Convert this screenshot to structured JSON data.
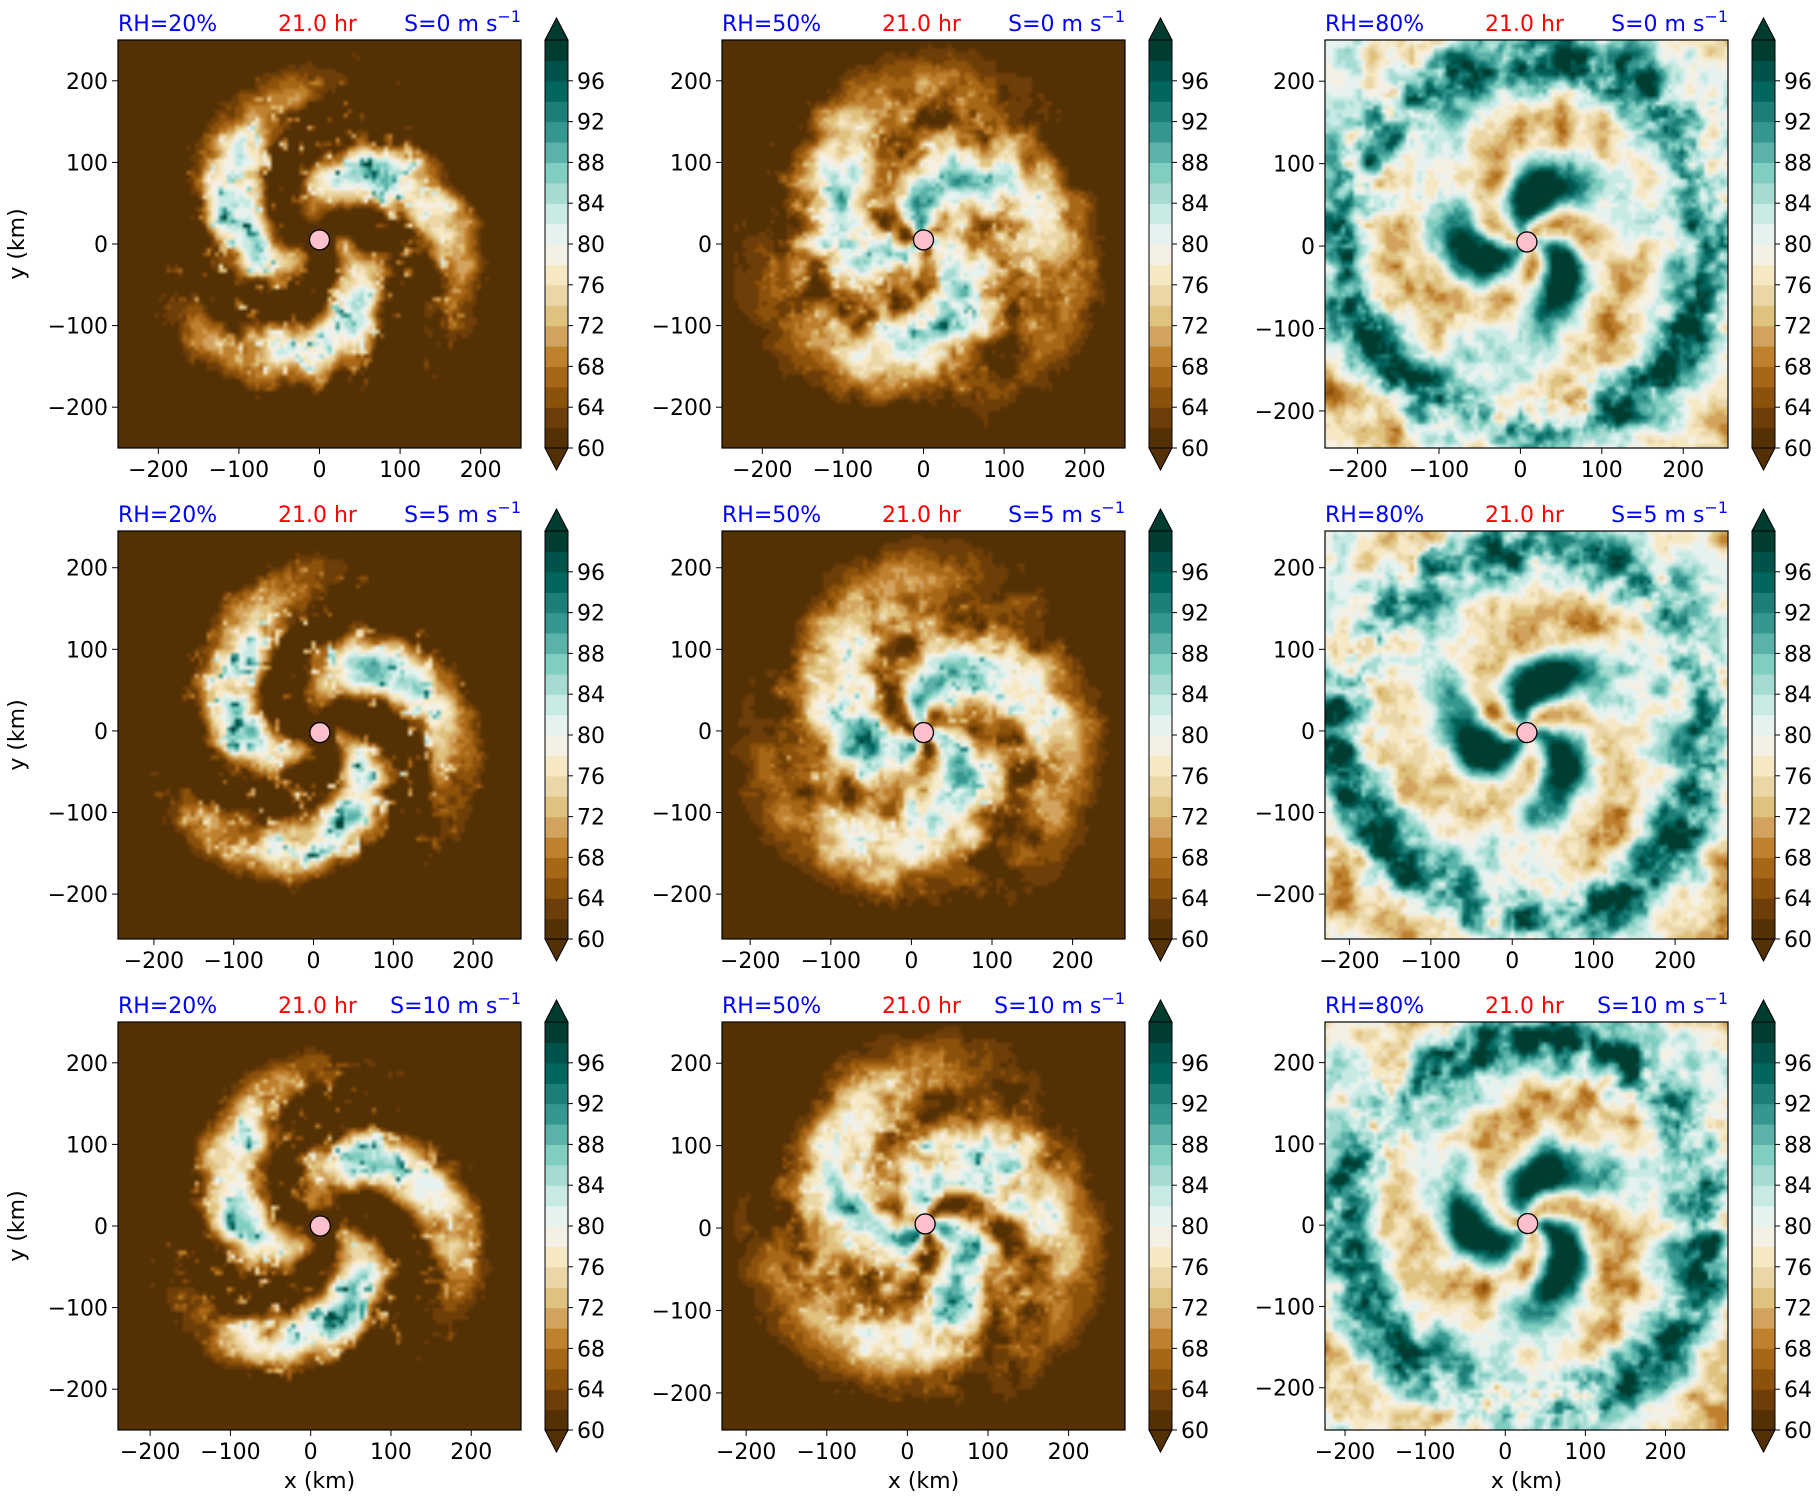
{
  "figure": {
    "colormap_name": "BrBG",
    "colorbar_levels": [
      60,
      62,
      64,
      66,
      68,
      70,
      72,
      74,
      76,
      78,
      80,
      82,
      84,
      86,
      88,
      90,
      92,
      94,
      96,
      98,
      100
    ],
    "colorbar_ticks": [
      "60",
      "64",
      "68",
      "72",
      "76",
      "80",
      "84",
      "88",
      "92",
      "96"
    ],
    "x_ticks_label": [
      "−200",
      "−100",
      "0",
      "100",
      "200"
    ],
    "y_ticks_label": [
      "−200",
      "−100",
      "0",
      "100",
      "200"
    ],
    "xlabel": "x (km)",
    "ylabel": "y (km)",
    "time_label": "21.0 hr",
    "colors": {
      "label_blue": "#0000ff",
      "label_red": "#ff0000",
      "center_marker": "#ffc0cb",
      "dry": "#543005",
      "moist": "#003c30"
    }
  },
  "chart_data": [
    {
      "type": "heatmap",
      "rh_label": "RH=20%",
      "time_label": "21.0 hr",
      "shear_label": "S=0 m s",
      "shear_exp": "−1",
      "xlim": [
        -250,
        250
      ],
      "ylim": [
        -250,
        250
      ],
      "center": [
        0,
        5
      ],
      "rh_env": 20,
      "zlim": [
        60,
        100
      ]
    },
    {
      "type": "heatmap",
      "rh_label": "RH=50%",
      "time_label": "21.0 hr",
      "shear_label": "S=0 m s",
      "shear_exp": "−1",
      "xlim": [
        -250,
        250
      ],
      "ylim": [
        -250,
        250
      ],
      "center": [
        0,
        5
      ],
      "rh_env": 50,
      "zlim": [
        60,
        100
      ]
    },
    {
      "type": "heatmap",
      "rh_label": "RH=80%",
      "time_label": "21.0 hr",
      "shear_label": "S=0 m s",
      "shear_exp": "−1",
      "xlim": [
        -240,
        255
      ],
      "ylim": [
        -245,
        250
      ],
      "center": [
        8,
        5
      ],
      "rh_env": 80,
      "zlim": [
        60,
        100
      ]
    },
    {
      "type": "heatmap",
      "rh_label": "RH=20%",
      "time_label": "21.0 hr",
      "shear_label": "S=5 m s",
      "shear_exp": "−1",
      "xlim": [
        -245,
        260
      ],
      "ylim": [
        -255,
        245
      ],
      "center": [
        8,
        -2
      ],
      "rh_env": 20,
      "zlim": [
        60,
        100
      ]
    },
    {
      "type": "heatmap",
      "rh_label": "RH=50%",
      "time_label": "21.0 hr",
      "shear_label": "S=5 m s",
      "shear_exp": "−1",
      "xlim": [
        -235,
        265
      ],
      "ylim": [
        -255,
        245
      ],
      "center": [
        15,
        -2
      ],
      "rh_env": 50,
      "zlim": [
        60,
        100
      ]
    },
    {
      "type": "heatmap",
      "rh_label": "RH=80%",
      "time_label": "21.0 hr",
      "shear_label": "S=5 m s",
      "shear_exp": "−1",
      "xlim": [
        -230,
        265
      ],
      "ylim": [
        -255,
        245
      ],
      "center": [
        18,
        -2
      ],
      "rh_env": 80,
      "zlim": [
        60,
        100
      ]
    },
    {
      "type": "heatmap",
      "rh_label": "RH=20%",
      "time_label": "21.0 hr",
      "shear_label": "S=10 m s",
      "shear_exp": "−1",
      "xlim": [
        -240,
        262
      ],
      "ylim": [
        -250,
        250
      ],
      "center": [
        12,
        0
      ],
      "rh_env": 20,
      "zlim": [
        60,
        100
      ]
    },
    {
      "type": "heatmap",
      "rh_label": "RH=50%",
      "time_label": "21.0 hr",
      "shear_label": "S=10 m s",
      "shear_exp": "−1",
      "xlim": [
        -230,
        270
      ],
      "ylim": [
        -245,
        250
      ],
      "center": [
        22,
        5
      ],
      "rh_env": 50,
      "zlim": [
        60,
        100
      ]
    },
    {
      "type": "heatmap",
      "rh_label": "RH=80%",
      "time_label": "21.0 hr",
      "shear_label": "S=10 m s",
      "shear_exp": "−1",
      "xlim": [
        -225,
        278
      ],
      "ylim": [
        -252,
        250
      ],
      "center": [
        28,
        2
      ],
      "rh_env": 80,
      "zlim": [
        60,
        100
      ]
    }
  ]
}
